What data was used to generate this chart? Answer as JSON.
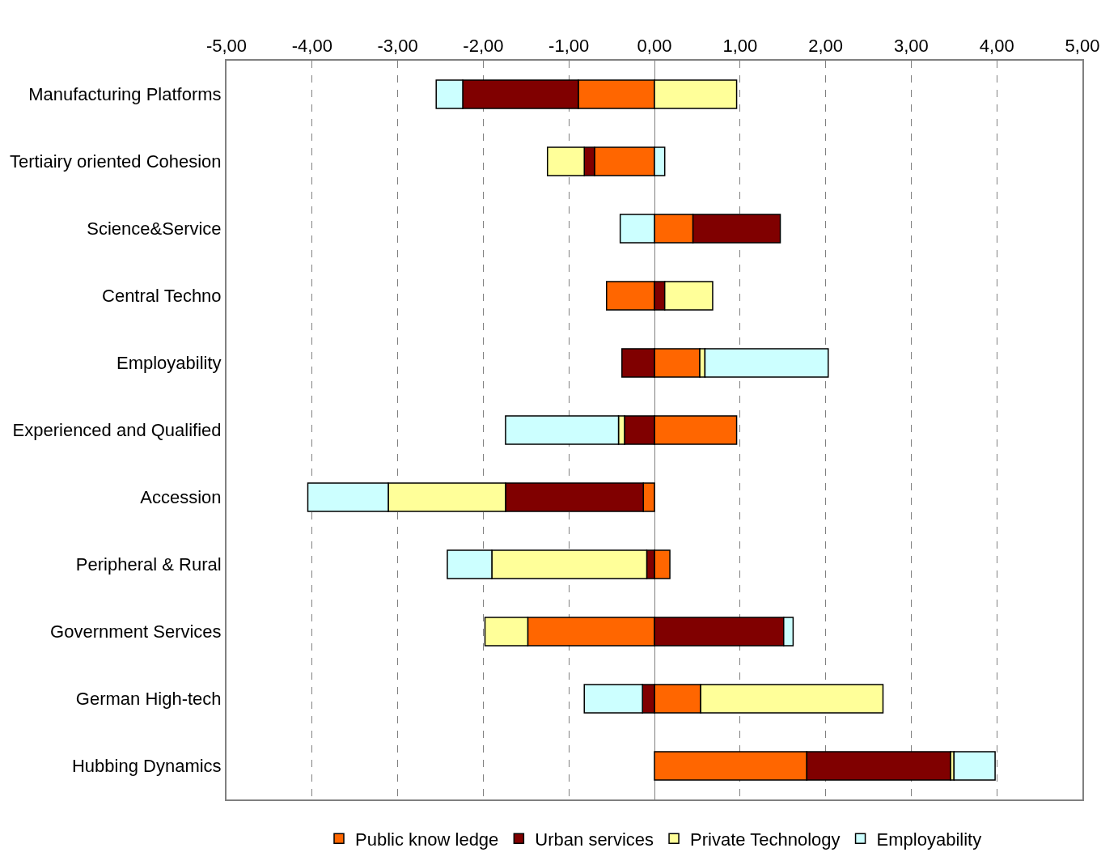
{
  "chart_data": {
    "type": "bar",
    "orientation": "horizontal",
    "stacked": true,
    "categories": [
      "Manufacturing Platforms",
      "Tertiairy oriented Cohesion",
      "Science&Service",
      "Central Techno",
      "Employability",
      "Experienced and Qualified",
      "Accession",
      "Peripheral & Rural",
      "Government Services",
      "German High-tech",
      "Hubbing Dynamics"
    ],
    "series": [
      {
        "name": "Public know ledge",
        "color": "#ff6600",
        "values": [
          -0.89,
          -0.7,
          0.45,
          -0.56,
          0.53,
          0.96,
          -0.13,
          0.18,
          -1.48,
          0.54,
          1.78
        ]
      },
      {
        "name": "Urban services",
        "color": "#800000",
        "values": [
          -1.35,
          -0.12,
          1.02,
          0.12,
          -0.38,
          -0.35,
          -1.61,
          -0.09,
          1.51,
          -0.14,
          1.68
        ]
      },
      {
        "name": "Private Technology",
        "color": "#ffff99",
        "values": [
          0.96,
          -0.43,
          null,
          0.56,
          0.06,
          -0.07,
          -1.37,
          -1.81,
          -0.5,
          2.13,
          0.04
        ]
      },
      {
        "name": "Employability",
        "color": "#ccffff",
        "values": [
          -0.31,
          0.12,
          -0.4,
          null,
          1.44,
          -1.32,
          -0.94,
          -0.52,
          0.11,
          -0.68,
          0.48
        ]
      }
    ],
    "xlim": [
      -5,
      5
    ],
    "xticks": [
      {
        "value": -5,
        "label": "-5,00"
      },
      {
        "value": -4,
        "label": "-4,00"
      },
      {
        "value": -3,
        "label": "-3,00"
      },
      {
        "value": -2,
        "label": "-2,00"
      },
      {
        "value": -1,
        "label": "-1,00"
      },
      {
        "value": 0,
        "label": "0,00"
      },
      {
        "value": 1,
        "label": "1,00"
      },
      {
        "value": 2,
        "label": "2,00"
      },
      {
        "value": 3,
        "label": "3,00"
      },
      {
        "value": 4,
        "label": "4,00"
      },
      {
        "value": 5,
        "label": "5,00"
      }
    ],
    "grid": "x",
    "legend": "bottom"
  }
}
